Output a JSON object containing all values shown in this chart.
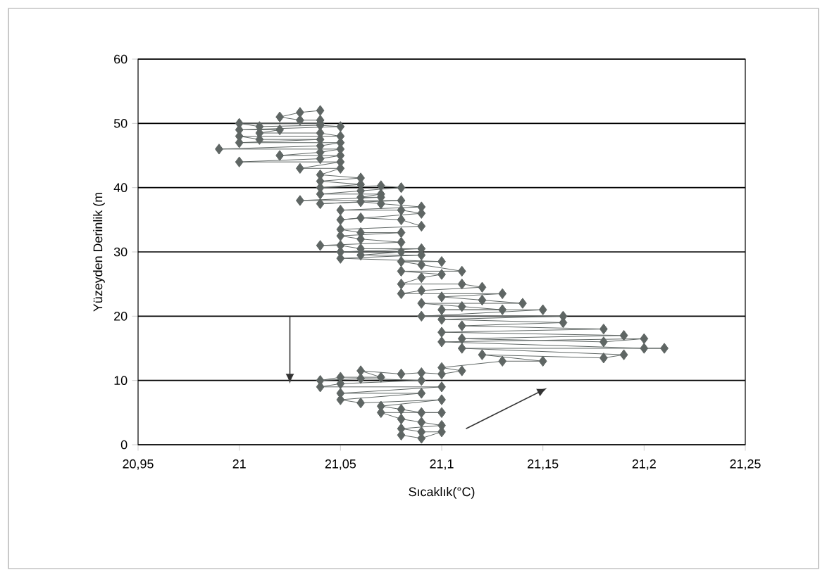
{
  "chart_data": {
    "type": "line",
    "xlabel": "Sıcaklık(°C)",
    "ylabel": "Yüzeyden Derinlik (m",
    "color": "#5f6664",
    "marker": "diamond",
    "line_style": "solid",
    "grid": "y",
    "xlim": [
      20.95,
      21.25
    ],
    "ylim": [
      0,
      60
    ],
    "xticks": [
      {
        "value": 20.95,
        "label": "20,95"
      },
      21,
      {
        "value": 21.05,
        "label": "21,05"
      },
      {
        "value": 21.1,
        "label": "21,1"
      },
      {
        "value": 21.15,
        "label": "21,15"
      },
      {
        "value": 21.2,
        "label": "21,2"
      },
      {
        "value": 21.25,
        "label": "21,25"
      }
    ],
    "yticks": [
      0,
      10,
      20,
      30,
      40,
      50,
      60
    ],
    "x": [
      21.04,
      21.03,
      21.02,
      21.03,
      21.04,
      21.04,
      21.0,
      21.01,
      21.04,
      21.05,
      21.0,
      21.02,
      21.01,
      21.04,
      21.05,
      21.0,
      21.01,
      21.04,
      21.0,
      21.05,
      21.04,
      20.99,
      21.05,
      21.04,
      21.02,
      21.05,
      21.04,
      21.0,
      21.05,
      21.03,
      21.05,
      21.04,
      21.06,
      21.04,
      21.06,
      21.04,
      21.07,
      21.08,
      21.06,
      21.04,
      21.07,
      21.06,
      21.07,
      21.03,
      21.08,
      21.04,
      21.06,
      21.07,
      21.09,
      21.05,
      21.08,
      21.09,
      21.05,
      21.06,
      21.08,
      21.09,
      21.05,
      21.06,
      21.08,
      21.05,
      21.06,
      21.08,
      21.04,
      21.05,
      21.06,
      21.09,
      21.05,
      21.08,
      21.06,
      21.09,
      21.05,
      21.1,
      21.08,
      21.09,
      21.11,
      21.08,
      21.1,
      21.09,
      21.08,
      21.11,
      21.12,
      21.09,
      21.08,
      21.13,
      21.1,
      21.12,
      21.14,
      21.09,
      21.11,
      21.13,
      21.1,
      21.15,
      21.09,
      21.16,
      21.1,
      21.16,
      21.11,
      21.18,
      21.1,
      21.19,
      21.11,
      21.18,
      21.2,
      21.1,
      21.2,
      21.21,
      21.11,
      21.19,
      21.18,
      21.12,
      21.15,
      21.13,
      21.1,
      21.11,
      21.1,
      21.09,
      21.08,
      21.06,
      21.07,
      21.05,
      21.04,
      21.06,
      21.09,
      21.05,
      21.04,
      21.1,
      21.05,
      21.09,
      21.05,
      21.06,
      21.1,
      21.07,
      21.08,
      21.09,
      21.1,
      21.07,
      21.08,
      21.09,
      21.1,
      21.08,
      21.09,
      21.1,
      21.09,
      21.08
    ],
    "values": [
      52,
      51.7,
      51,
      50.5,
      50.5,
      50,
      50,
      49.5,
      49.7,
      49.5,
      49,
      49,
      48.5,
      48.5,
      48,
      48,
      47.5,
      47.5,
      47,
      47,
      46.5,
      46,
      46,
      45.5,
      45,
      45,
      44.5,
      44,
      44,
      43,
      43,
      42,
      41.5,
      41,
      40.5,
      40,
      40.3,
      40,
      39.5,
      39,
      39,
      38.5,
      38.5,
      38,
      38,
      37.5,
      37.8,
      37.5,
      37,
      36.5,
      36.5,
      36,
      35,
      35.3,
      35,
      34,
      33.5,
      33,
      33,
      32.5,
      32,
      31.5,
      31,
      31,
      30.5,
      30.5,
      30,
      30,
      29.5,
      29.5,
      29,
      28.5,
      28.5,
      28,
      27,
      27,
      26.5,
      26,
      25,
      25,
      24.5,
      24,
      23.5,
      23.5,
      23,
      22.5,
      22,
      22,
      21.5,
      21,
      21,
      21,
      20,
      20,
      19.5,
      19,
      18.5,
      18,
      17.5,
      17,
      16.5,
      16,
      16.5,
      16,
      15,
      15,
      15,
      14,
      13.5,
      14,
      13,
      13,
      12,
      11.5,
      11,
      11.2,
      11,
      11.5,
      10.5,
      10.5,
      10,
      10.3,
      10,
      9.5,
      9,
      9,
      8,
      8,
      7,
      6.5,
      7,
      6,
      5.5,
      5,
      5,
      5,
      4,
      3.5,
      3,
      2.5,
      2,
      2,
      1,
      1.5
    ]
  }
}
